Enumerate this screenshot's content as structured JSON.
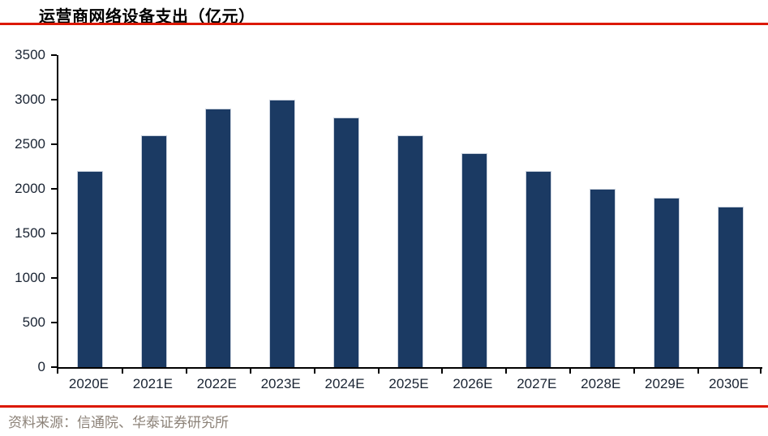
{
  "header": {
    "title": "运营商网络设备支出（亿元）"
  },
  "footer": {
    "source": "资料来源：信通院、华泰证券研究所"
  },
  "colors": {
    "accent_red": "#dc1800",
    "bar_fill": "#1b3a63",
    "bar_outline": "#c9d1dd",
    "axis_line": "#000000",
    "axis_label": "#1a2433",
    "source_text": "#8c8278"
  },
  "chart_data": {
    "type": "bar",
    "title": "运营商网络设备支出（亿元）",
    "categories": [
      "2020E",
      "2021E",
      "2022E",
      "2023E",
      "2024E",
      "2025E",
      "2026E",
      "2027E",
      "2028E",
      "2029E",
      "2030E"
    ],
    "values": [
      2200,
      2600,
      2900,
      3000,
      2800,
      2600,
      2400,
      2200,
      2000,
      1900,
      1800
    ],
    "xlabel": "",
    "ylabel": "",
    "ylim": [
      0,
      3500
    ],
    "ytick_step": 500,
    "grid": false,
    "legend": "none",
    "bar_color": "#1b3a63"
  }
}
